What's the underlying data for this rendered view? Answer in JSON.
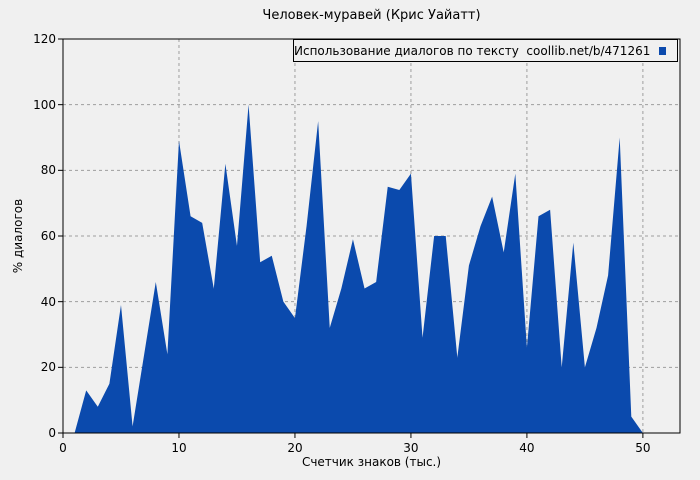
{
  "figure": {
    "title": "Человек-муравей (Крис Уайатт)",
    "background_color": "#f0f0f0"
  },
  "chart_data": {
    "type": "area",
    "title": "Человек-муравей (Крис Уайатт)",
    "xlabel": "Счетчик знаков (тыс.)",
    "ylabel": "% диалогов",
    "xlim": [
      0,
      53.2
    ],
    "ylim": [
      0,
      120
    ],
    "xticks": [
      0,
      10,
      20,
      30,
      40,
      50
    ],
    "yticks": [
      0,
      20,
      40,
      60,
      80,
      100,
      120
    ],
    "grid": true,
    "legend": {
      "label": "Использование диалогов по тексту  coollib.net/b/471261",
      "position": "top-right"
    },
    "colors": {
      "fill": "#0b4aad",
      "grid": "#9e9e9e",
      "axis": "#000000",
      "background": "#f0f0f0"
    },
    "series": [
      {
        "name": "Использование диалогов по тексту coollib.net/b/471261",
        "x": [
          0,
          1,
          2,
          3,
          4,
          5,
          6,
          7,
          8,
          9,
          10,
          11,
          12,
          13,
          14,
          15,
          16,
          17,
          18,
          19,
          20,
          21,
          22,
          23,
          24,
          25,
          26,
          27,
          28,
          29,
          30,
          31,
          32,
          33,
          34,
          35,
          36,
          37,
          38,
          39,
          40,
          41,
          42,
          43,
          44,
          45,
          46,
          47,
          48,
          49,
          50
        ],
        "y": [
          0,
          0,
          13,
          8,
          15,
          39,
          2,
          24,
          46,
          24,
          89,
          66,
          64,
          44,
          82,
          57,
          100,
          52,
          54,
          40,
          35,
          63,
          95,
          32,
          44,
          59,
          44,
          46,
          75,
          74,
          79,
          29,
          60,
          60,
          23,
          51,
          63,
          72,
          55,
          79,
          26,
          66,
          68,
          20,
          58,
          20,
          32,
          48,
          90,
          5,
          0
        ]
      }
    ]
  }
}
